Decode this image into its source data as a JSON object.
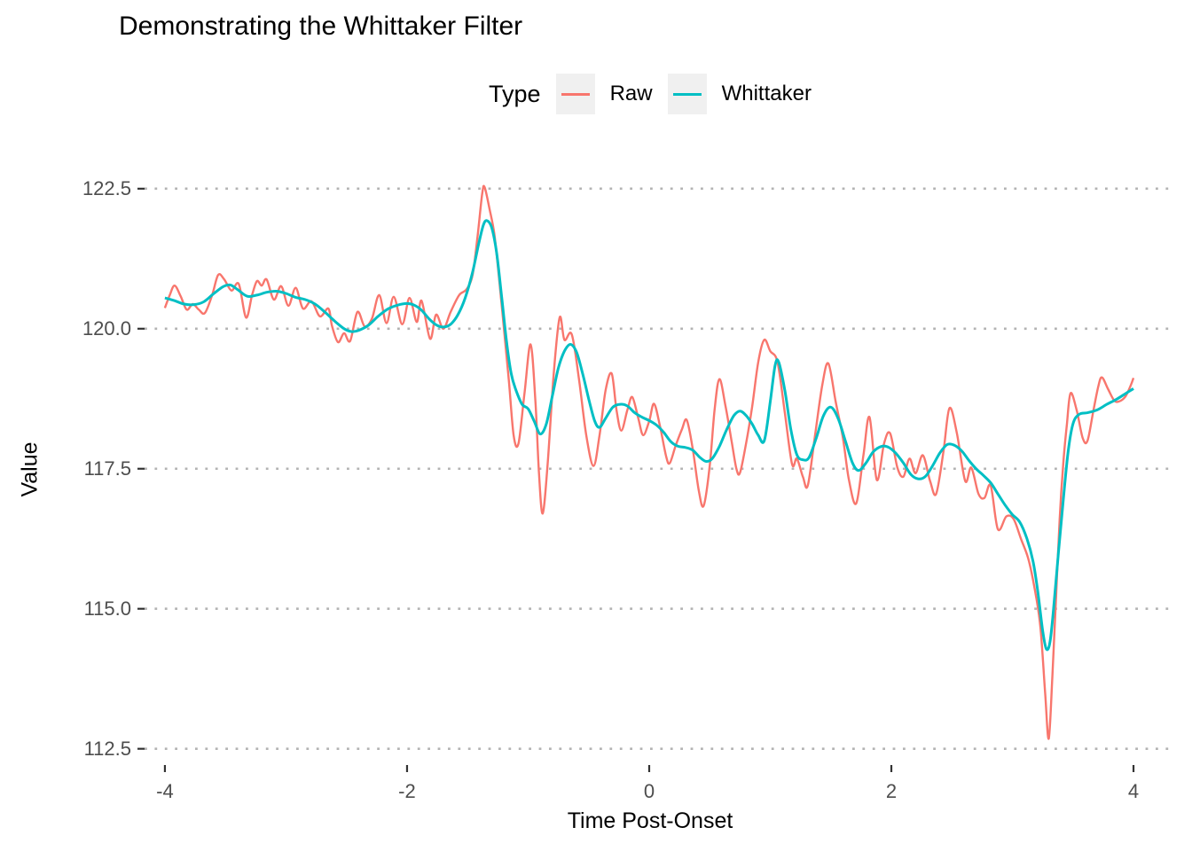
{
  "chart_data": {
    "type": "line",
    "title": "Demonstrating the Whittaker Filter",
    "xlabel": "Time Post-Onset",
    "ylabel": "Value",
    "legend_title": "Type",
    "legend_position": "top-center",
    "grid": "horizontal-dotted",
    "background": "#FFFFFF",
    "x_ticks": [
      "-4",
      "-2",
      "0",
      "2",
      "4"
    ],
    "x_tick_values": [
      -4,
      -2,
      0,
      2,
      4
    ],
    "y_ticks": [
      "112.5",
      "115.0",
      "117.5",
      "120.0",
      "122.5"
    ],
    "y_tick_values": [
      112.5,
      115.0,
      117.5,
      120.0,
      122.5
    ],
    "x_range": [
      -4.168,
      4.322
    ],
    "y_range": [
      112.21,
      122.735
    ],
    "series": [
      {
        "name": "Raw",
        "color": "#F8766D",
        "points": [
          [
            -4.0,
            120.37
          ],
          [
            -3.96,
            120.6
          ],
          [
            -3.92,
            120.77
          ],
          [
            -3.87,
            120.58
          ],
          [
            -3.82,
            120.34
          ],
          [
            -3.77,
            120.44
          ],
          [
            -3.72,
            120.34
          ],
          [
            -3.67,
            120.28
          ],
          [
            -3.61,
            120.6
          ],
          [
            -3.56,
            120.96
          ],
          [
            -3.51,
            120.88
          ],
          [
            -3.45,
            120.68
          ],
          [
            -3.39,
            120.8
          ],
          [
            -3.33,
            120.2
          ],
          [
            -3.28,
            120.6
          ],
          [
            -3.24,
            120.85
          ],
          [
            -3.2,
            120.77
          ],
          [
            -3.16,
            120.88
          ],
          [
            -3.1,
            120.52
          ],
          [
            -3.04,
            120.76
          ],
          [
            -2.98,
            120.41
          ],
          [
            -2.92,
            120.73
          ],
          [
            -2.86,
            120.36
          ],
          [
            -2.79,
            120.49
          ],
          [
            -2.72,
            120.22
          ],
          [
            -2.65,
            120.36
          ],
          [
            -2.62,
            120.05
          ],
          [
            -2.57,
            119.76
          ],
          [
            -2.52,
            119.92
          ],
          [
            -2.47,
            119.78
          ],
          [
            -2.41,
            120.3
          ],
          [
            -2.35,
            120.04
          ],
          [
            -2.29,
            120.18
          ],
          [
            -2.23,
            120.6
          ],
          [
            -2.17,
            120.1
          ],
          [
            -2.11,
            120.57
          ],
          [
            -2.04,
            120.08
          ],
          [
            -1.98,
            120.55
          ],
          [
            -1.92,
            120.12
          ],
          [
            -1.88,
            120.5
          ],
          [
            -1.81,
            119.82
          ],
          [
            -1.76,
            120.25
          ],
          [
            -1.7,
            120.0
          ],
          [
            -1.64,
            120.3
          ],
          [
            -1.57,
            120.6
          ],
          [
            -1.51,
            120.7
          ],
          [
            -1.46,
            120.95
          ],
          [
            -1.42,
            121.6
          ],
          [
            -1.38,
            122.4
          ],
          [
            -1.36,
            122.53
          ],
          [
            -1.32,
            122.15
          ],
          [
            -1.28,
            121.7
          ],
          [
            -1.24,
            120.9
          ],
          [
            -1.2,
            120.0
          ],
          [
            -1.16,
            119.1
          ],
          [
            -1.12,
            118.1
          ],
          [
            -1.08,
            117.95
          ],
          [
            -1.03,
            118.85
          ],
          [
            -0.98,
            119.72
          ],
          [
            -0.94,
            118.7
          ],
          [
            -0.91,
            117.4
          ],
          [
            -0.88,
            116.7
          ],
          [
            -0.84,
            117.55
          ],
          [
            -0.79,
            119.15
          ],
          [
            -0.74,
            120.2
          ],
          [
            -0.7,
            119.8
          ],
          [
            -0.64,
            119.9
          ],
          [
            -0.58,
            119.1
          ],
          [
            -0.52,
            118.1
          ],
          [
            -0.46,
            117.55
          ],
          [
            -0.41,
            118.1
          ],
          [
            -0.36,
            118.9
          ],
          [
            -0.31,
            119.2
          ],
          [
            -0.27,
            118.55
          ],
          [
            -0.23,
            118.18
          ],
          [
            -0.18,
            118.55
          ],
          [
            -0.14,
            118.78
          ],
          [
            -0.09,
            118.4
          ],
          [
            -0.05,
            118.1
          ],
          [
            0.0,
            118.35
          ],
          [
            0.04,
            118.66
          ],
          [
            0.09,
            118.25
          ],
          [
            0.14,
            117.72
          ],
          [
            0.17,
            117.6
          ],
          [
            0.22,
            117.92
          ],
          [
            0.27,
            118.2
          ],
          [
            0.31,
            118.37
          ],
          [
            0.36,
            117.85
          ],
          [
            0.41,
            117.1
          ],
          [
            0.45,
            116.84
          ],
          [
            0.5,
            117.55
          ],
          [
            0.54,
            118.55
          ],
          [
            0.58,
            119.1
          ],
          [
            0.63,
            118.62
          ],
          [
            0.68,
            118.0
          ],
          [
            0.72,
            117.5
          ],
          [
            0.75,
            117.43
          ],
          [
            0.8,
            117.95
          ],
          [
            0.85,
            118.6
          ],
          [
            0.9,
            119.4
          ],
          [
            0.95,
            119.8
          ],
          [
            1.0,
            119.6
          ],
          [
            1.06,
            119.4
          ],
          [
            1.12,
            118.5
          ],
          [
            1.18,
            117.58
          ],
          [
            1.22,
            117.68
          ],
          [
            1.27,
            117.35
          ],
          [
            1.31,
            117.2
          ],
          [
            1.37,
            118.1
          ],
          [
            1.43,
            119.0
          ],
          [
            1.48,
            119.38
          ],
          [
            1.54,
            118.7
          ],
          [
            1.6,
            118.05
          ],
          [
            1.65,
            117.3
          ],
          [
            1.71,
            116.88
          ],
          [
            1.77,
            117.75
          ],
          [
            1.82,
            118.42
          ],
          [
            1.88,
            117.3
          ],
          [
            1.94,
            117.95
          ],
          [
            1.99,
            118.13
          ],
          [
            2.05,
            117.52
          ],
          [
            2.1,
            117.36
          ],
          [
            2.15,
            117.68
          ],
          [
            2.2,
            117.42
          ],
          [
            2.26,
            117.74
          ],
          [
            2.32,
            117.28
          ],
          [
            2.37,
            117.05
          ],
          [
            2.43,
            117.8
          ],
          [
            2.48,
            118.58
          ],
          [
            2.54,
            118.15
          ],
          [
            2.61,
            117.28
          ],
          [
            2.66,
            117.52
          ],
          [
            2.72,
            117.05
          ],
          [
            2.77,
            116.98
          ],
          [
            2.82,
            117.2
          ],
          [
            2.88,
            116.42
          ],
          [
            2.95,
            116.65
          ],
          [
            3.01,
            116.6
          ],
          [
            3.07,
            116.25
          ],
          [
            3.13,
            115.9
          ],
          [
            3.18,
            115.4
          ],
          [
            3.23,
            114.7
          ],
          [
            3.27,
            113.5
          ],
          [
            3.3,
            112.68
          ],
          [
            3.33,
            113.8
          ],
          [
            3.36,
            115.2
          ],
          [
            3.39,
            116.6
          ],
          [
            3.42,
            117.6
          ],
          [
            3.45,
            118.3
          ],
          [
            3.48,
            118.85
          ],
          [
            3.53,
            118.55
          ],
          [
            3.58,
            118.05
          ],
          [
            3.62,
            118.0
          ],
          [
            3.67,
            118.55
          ],
          [
            3.71,
            118.98
          ],
          [
            3.74,
            119.13
          ],
          [
            3.79,
            118.92
          ],
          [
            3.84,
            118.72
          ],
          [
            3.88,
            118.7
          ],
          [
            3.93,
            118.78
          ],
          [
            3.97,
            118.95
          ],
          [
            4.0,
            119.12
          ]
        ]
      },
      {
        "name": "Whittaker",
        "color": "#00BFC4",
        "points": [
          [
            -4.0,
            120.55
          ],
          [
            -3.92,
            120.5
          ],
          [
            -3.84,
            120.44
          ],
          [
            -3.76,
            120.43
          ],
          [
            -3.68,
            120.48
          ],
          [
            -3.6,
            120.62
          ],
          [
            -3.52,
            120.75
          ],
          [
            -3.46,
            120.78
          ],
          [
            -3.4,
            120.7
          ],
          [
            -3.32,
            120.58
          ],
          [
            -3.24,
            120.6
          ],
          [
            -3.16,
            120.65
          ],
          [
            -3.08,
            120.67
          ],
          [
            -3.0,
            120.63
          ],
          [
            -2.92,
            120.56
          ],
          [
            -2.84,
            120.52
          ],
          [
            -2.76,
            120.44
          ],
          [
            -2.68,
            120.3
          ],
          [
            -2.6,
            120.14
          ],
          [
            -2.52,
            120.0
          ],
          [
            -2.46,
            119.95
          ],
          [
            -2.4,
            119.97
          ],
          [
            -2.32,
            120.06
          ],
          [
            -2.24,
            120.22
          ],
          [
            -2.16,
            120.35
          ],
          [
            -2.08,
            120.42
          ],
          [
            -2.0,
            120.45
          ],
          [
            -1.94,
            120.42
          ],
          [
            -1.88,
            120.33
          ],
          [
            -1.82,
            120.18
          ],
          [
            -1.76,
            120.07
          ],
          [
            -1.7,
            120.03
          ],
          [
            -1.64,
            120.08
          ],
          [
            -1.58,
            120.25
          ],
          [
            -1.52,
            120.55
          ],
          [
            -1.46,
            121.0
          ],
          [
            -1.41,
            121.5
          ],
          [
            -1.37,
            121.85
          ],
          [
            -1.34,
            121.93
          ],
          [
            -1.3,
            121.8
          ],
          [
            -1.26,
            121.35
          ],
          [
            -1.22,
            120.6
          ],
          [
            -1.18,
            119.8
          ],
          [
            -1.14,
            119.2
          ],
          [
            -1.1,
            118.9
          ],
          [
            -1.05,
            118.65
          ],
          [
            -1.0,
            118.57
          ],
          [
            -0.95,
            118.35
          ],
          [
            -0.9,
            118.12
          ],
          [
            -0.85,
            118.3
          ],
          [
            -0.8,
            118.8
          ],
          [
            -0.75,
            119.3
          ],
          [
            -0.7,
            119.6
          ],
          [
            -0.65,
            119.72
          ],
          [
            -0.6,
            119.58
          ],
          [
            -0.55,
            119.2
          ],
          [
            -0.5,
            118.75
          ],
          [
            -0.45,
            118.35
          ],
          [
            -0.41,
            118.24
          ],
          [
            -0.36,
            118.4
          ],
          [
            -0.3,
            118.6
          ],
          [
            -0.24,
            118.65
          ],
          [
            -0.18,
            118.62
          ],
          [
            -0.12,
            118.5
          ],
          [
            -0.06,
            118.42
          ],
          [
            0.0,
            118.36
          ],
          [
            0.06,
            118.28
          ],
          [
            0.12,
            118.15
          ],
          [
            0.18,
            117.98
          ],
          [
            0.24,
            117.9
          ],
          [
            0.3,
            117.88
          ],
          [
            0.36,
            117.83
          ],
          [
            0.42,
            117.7
          ],
          [
            0.47,
            117.63
          ],
          [
            0.52,
            117.68
          ],
          [
            0.58,
            117.9
          ],
          [
            0.64,
            118.2
          ],
          [
            0.7,
            118.45
          ],
          [
            0.75,
            118.53
          ],
          [
            0.8,
            118.45
          ],
          [
            0.85,
            118.3
          ],
          [
            0.9,
            118.1
          ],
          [
            0.95,
            118.0
          ],
          [
            1.0,
            118.7
          ],
          [
            1.04,
            119.35
          ],
          [
            1.07,
            119.4
          ],
          [
            1.12,
            118.9
          ],
          [
            1.17,
            118.2
          ],
          [
            1.22,
            117.75
          ],
          [
            1.27,
            117.66
          ],
          [
            1.32,
            117.7
          ],
          [
            1.38,
            118.05
          ],
          [
            1.44,
            118.45
          ],
          [
            1.5,
            118.6
          ],
          [
            1.56,
            118.4
          ],
          [
            1.62,
            118.0
          ],
          [
            1.68,
            117.6
          ],
          [
            1.73,
            117.47
          ],
          [
            1.79,
            117.6
          ],
          [
            1.85,
            117.8
          ],
          [
            1.92,
            117.9
          ],
          [
            1.98,
            117.88
          ],
          [
            2.04,
            117.77
          ],
          [
            2.1,
            117.6
          ],
          [
            2.16,
            117.4
          ],
          [
            2.22,
            117.32
          ],
          [
            2.28,
            117.36
          ],
          [
            2.34,
            117.55
          ],
          [
            2.4,
            117.78
          ],
          [
            2.46,
            117.93
          ],
          [
            2.52,
            117.92
          ],
          [
            2.58,
            117.82
          ],
          [
            2.64,
            117.65
          ],
          [
            2.7,
            117.5
          ],
          [
            2.76,
            117.38
          ],
          [
            2.82,
            117.25
          ],
          [
            2.88,
            117.05
          ],
          [
            2.94,
            116.85
          ],
          [
            3.0,
            116.68
          ],
          [
            3.06,
            116.55
          ],
          [
            3.12,
            116.25
          ],
          [
            3.17,
            115.85
          ],
          [
            3.21,
            115.3
          ],
          [
            3.25,
            114.6
          ],
          [
            3.28,
            114.28
          ],
          [
            3.31,
            114.4
          ],
          [
            3.34,
            115.0
          ],
          [
            3.38,
            116.0
          ],
          [
            3.42,
            116.95
          ],
          [
            3.46,
            117.8
          ],
          [
            3.5,
            118.3
          ],
          [
            3.55,
            118.47
          ],
          [
            3.62,
            118.5
          ],
          [
            3.7,
            118.55
          ],
          [
            3.78,
            118.65
          ],
          [
            3.86,
            118.74
          ],
          [
            3.94,
            118.85
          ],
          [
            4.0,
            118.93
          ]
        ]
      }
    ]
  },
  "colors": {
    "grid": "#B3B3B3",
    "tick_mark": "#333333",
    "tick_label": "#4D4D4D",
    "text": "#000000",
    "legend_key_background": "#F0F0F0",
    "panel_background": "#FFFFFF"
  }
}
